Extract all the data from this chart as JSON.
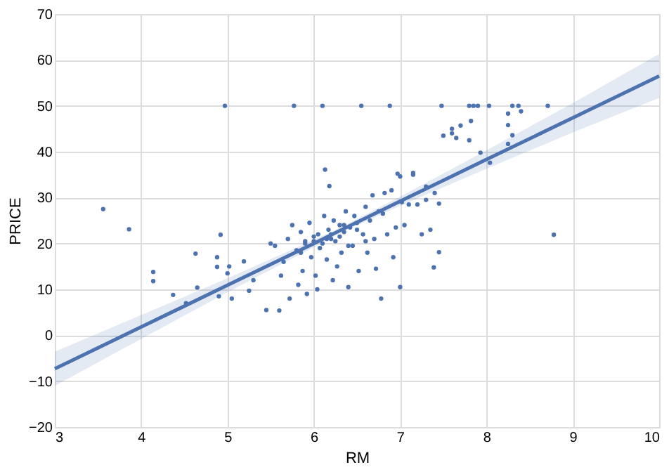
{
  "chart_data": {
    "type": "scatter",
    "xlabel": "RM",
    "ylabel": "PRICE",
    "xlim": [
      3,
      10
    ],
    "ylim": [
      -20,
      70
    ],
    "xticks": [
      3,
      4,
      5,
      6,
      7,
      8,
      9,
      10
    ],
    "yticks": [
      -20,
      -10,
      0,
      10,
      20,
      30,
      40,
      50,
      60,
      70
    ],
    "grid": true,
    "series": [
      {
        "color": "#4c72b0",
        "marker": "circle",
        "x": [
          3.56,
          3.86,
          4.14,
          4.14,
          4.37,
          4.52,
          4.63,
          4.65,
          4.88,
          4.88,
          4.9,
          4.92,
          4.97,
          5.0,
          5.02,
          5.05,
          5.19,
          5.25,
          5.3,
          5.45,
          5.55,
          5.6,
          5.62,
          5.65,
          5.7,
          5.72,
          5.75,
          5.77,
          5.8,
          5.82,
          5.85,
          5.87,
          5.9,
          5.92,
          5.95,
          5.97,
          6.0,
          6.02,
          6.04,
          6.05,
          6.07,
          6.1,
          6.12,
          6.13,
          6.15,
          6.17,
          6.18,
          6.2,
          6.22,
          6.23,
          6.25,
          6.27,
          6.3,
          6.32,
          6.35,
          6.37,
          6.4,
          6.42,
          6.45,
          6.47,
          6.5,
          6.52,
          6.55,
          6.57,
          6.6,
          6.62,
          6.65,
          6.68,
          6.7,
          6.72,
          6.75,
          6.78,
          6.8,
          6.82,
          6.85,
          6.88,
          6.9,
          6.92,
          6.95,
          6.97,
          7.0,
          7.0,
          7.02,
          7.05,
          7.1,
          7.15,
          7.15,
          7.2,
          7.25,
          7.3,
          7.3,
          7.35,
          7.39,
          7.4,
          7.45,
          7.45,
          7.48,
          7.5,
          7.6,
          7.6,
          7.65,
          7.7,
          7.8,
          7.8,
          7.82,
          7.85,
          7.9,
          7.93,
          8.03,
          8.04,
          8.25,
          8.25,
          8.25,
          8.3,
          8.3,
          8.37,
          8.4,
          8.71,
          8.78,
          5.5,
          5.9,
          6.1,
          6.3,
          6.5,
          5.85,
          6.0,
          6.2,
          6.4,
          6.6,
          6.15,
          6.35
        ],
        "values": [
          27.5,
          23.1,
          13.8,
          11.8,
          8.8,
          7.0,
          17.8,
          10.4,
          14.9,
          17.0,
          8.5,
          21.9,
          50.0,
          13.5,
          15.0,
          8.0,
          16.1,
          9.7,
          12.0,
          5.5,
          19.5,
          5.4,
          13.0,
          16.0,
          21.0,
          8.0,
          24.0,
          50.0,
          18.5,
          11.0,
          22.5,
          14.0,
          20.0,
          9.0,
          24.5,
          17.0,
          21.5,
          13.0,
          10.0,
          22.0,
          19.0,
          50.0,
          26.0,
          36.1,
          16.5,
          23.0,
          32.5,
          21.0,
          12.0,
          25.0,
          20.5,
          15.0,
          24.0,
          18.0,
          22.5,
          27.0,
          10.5,
          23.5,
          19.5,
          26.0,
          24.5,
          14.0,
          50.0,
          22.0,
          28.0,
          18.0,
          25.0,
          30.5,
          21.0,
          14.5,
          27.0,
          8.0,
          26.5,
          31.0,
          22.0,
          50.0,
          31.6,
          17.0,
          23.5,
          35.2,
          34.6,
          10.5,
          29.0,
          24.0,
          28.5,
          35.0,
          35.4,
          28.5,
          22.0,
          32.4,
          29.5,
          23.0,
          14.8,
          31.0,
          28.7,
          18.1,
          50.0,
          43.5,
          44.0,
          45.0,
          43.0,
          45.7,
          50.0,
          42.5,
          46.7,
          50.0,
          50.0,
          39.8,
          50.0,
          37.6,
          45.8,
          41.7,
          48.3,
          43.6,
          50.0,
          50.0,
          48.8,
          50.0,
          21.9,
          20.0,
          20.5,
          20.0,
          21.5,
          23.0,
          18.0,
          20.5,
          22.0,
          19.5,
          20.5,
          21.0,
          24.0
        ]
      },
      {
        "type": "line",
        "color": "#4c72b0",
        "marker": "none",
        "line_style": "solid",
        "x": [
          3,
          4,
          5,
          6,
          6.3,
          7,
          8,
          9,
          10
        ],
        "values": [
          -7.3,
          1.8,
          10.9,
          20.0,
          22.8,
          29.2,
          38.3,
          47.4,
          56.5
        ],
        "lower": [
          -11.0,
          -0.8,
          9.4,
          19.2,
          22.2,
          28.2,
          36.3,
          44.2,
          51.7
        ],
        "upper": [
          -3.6,
          4.4,
          12.4,
          20.8,
          23.4,
          30.2,
          40.3,
          50.6,
          61.3
        ]
      }
    ]
  }
}
